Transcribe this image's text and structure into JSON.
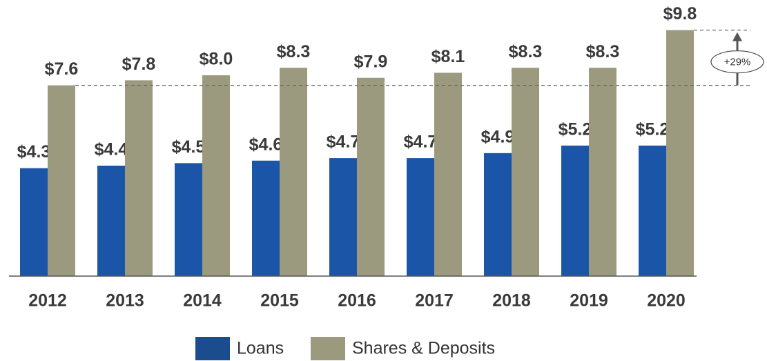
{
  "chart_data": {
    "type": "bar",
    "categories": [
      "2012",
      "2013",
      "2014",
      "2015",
      "2016",
      "2017",
      "2018",
      "2019",
      "2020"
    ],
    "series": [
      {
        "name": "Loans",
        "color": "#1a55a7",
        "values": [
          4.3,
          4.4,
          4.5,
          4.6,
          4.7,
          4.7,
          4.9,
          5.2,
          5.2
        ],
        "value_labels": [
          "$4.3",
          "$4.4",
          "$4.5",
          "$4.6",
          "$4.7",
          "$4.7",
          "$4.9",
          "$5.2",
          "$5.2"
        ]
      },
      {
        "name": "Shares & Deposits",
        "color": "#9c9a7e",
        "values": [
          7.6,
          7.8,
          8.0,
          8.3,
          7.9,
          8.1,
          8.3,
          8.3,
          9.8
        ],
        "value_labels": [
          "$7.6",
          "$7.8",
          "$8.0",
          "$8.3",
          "$7.9",
          "$8.1",
          "$8.3",
          "$8.3",
          "$9.8"
        ]
      }
    ],
    "ylim": [
      0,
      11
    ],
    "annotation": "+29%",
    "legend": "bottom"
  }
}
